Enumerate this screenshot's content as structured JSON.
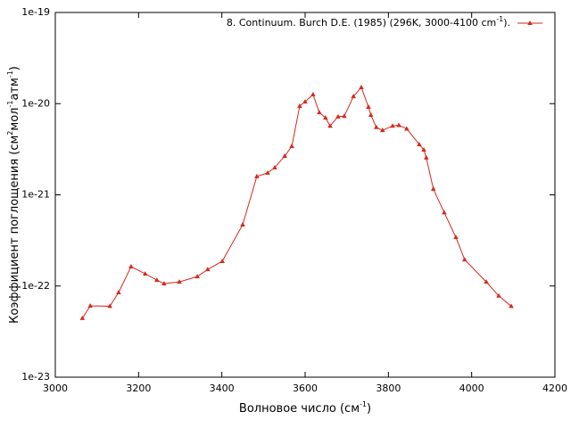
{
  "chart_data": {
    "type": "line",
    "xlabel": [
      "Волновое число (см",
      "-1",
      ")"
    ],
    "ylabel": [
      "Коэффициент поглощения (см",
      "2",
      "мол",
      "-1",
      "атм",
      "-1",
      ")"
    ],
    "xlim": [
      3000,
      4200
    ],
    "xticks": [
      3000,
      3200,
      3400,
      3600,
      3800,
      4000,
      4200
    ],
    "ylim": [
      1e-23,
      1e-19
    ],
    "ylog": true,
    "yticks": [
      {
        "value": 1e-23,
        "label": "1e-23"
      },
      {
        "value": 1e-22,
        "label": "1e-22"
      },
      {
        "value": 1e-21,
        "label": "1e-21"
      },
      {
        "value": 1e-20,
        "label": "1e-20"
      },
      {
        "value": 1e-19,
        "label": "1e-19"
      }
    ],
    "legend": "top-right",
    "series": [
      {
        "name": [
          "8. Continuum. Burch D.E. (1985) (296K, 3000-4100 cm",
          "-1",
          ")."
        ],
        "color": "#d42a1e",
        "x": [
          3065,
          3084,
          3131,
          3152,
          3182,
          3216,
          3244,
          3261,
          3298,
          3341,
          3366,
          3401,
          3450,
          3484,
          3510,
          3527,
          3551,
          3568,
          3587,
          3600,
          3619,
          3634,
          3649,
          3660,
          3679,
          3694,
          3716,
          3735,
          3752,
          3758,
          3771,
          3786,
          3810,
          3825,
          3844,
          3874,
          3885,
          3891,
          3908,
          3934,
          3962,
          3983,
          4035,
          4065,
          4095
        ],
        "values": [
          4.43e-23,
          6.06e-23,
          6e-23,
          8.5e-23,
          1.63e-22,
          1.36e-22,
          1.16e-22,
          1.06e-22,
          1.11e-22,
          1.27e-22,
          1.52e-22,
          1.87e-22,
          4.7e-22,
          1.59e-21,
          1.74e-21,
          1.99e-21,
          2.66e-21,
          3.41e-21,
          9.4e-21,
          1.05e-20,
          1.26e-20,
          8e-21,
          7e-21,
          5.7e-21,
          7.2e-21,
          7.3e-21,
          1.2e-20,
          1.51e-20,
          9.2e-21,
          7.5e-21,
          5.5e-21,
          5.1e-21,
          5.7e-21,
          5.8e-21,
          5.3e-21,
          3.57e-21,
          3.12e-21,
          2.55e-21,
          1.16e-21,
          6.4e-22,
          3.43e-22,
          1.95e-22,
          1.11e-22,
          7.8e-23,
          6e-23
        ]
      }
    ]
  }
}
